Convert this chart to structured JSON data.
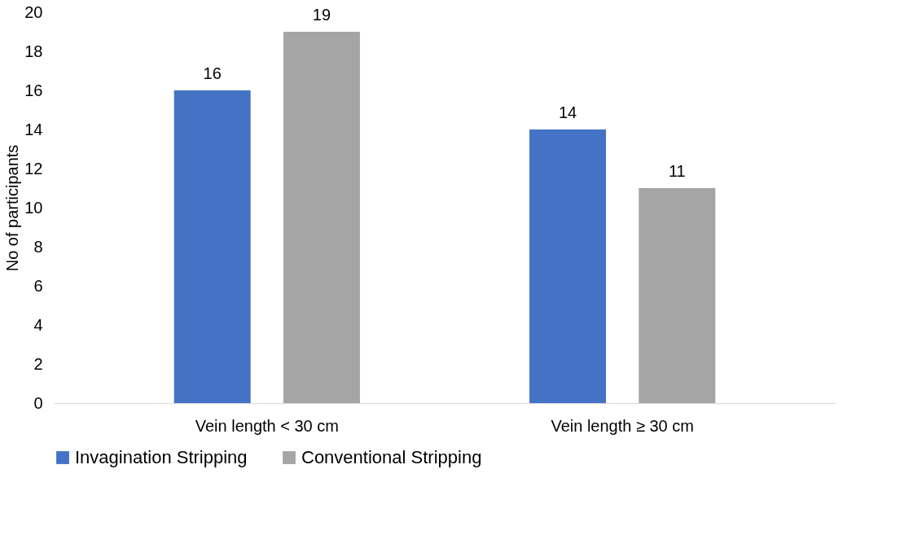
{
  "chart_data": {
    "type": "bar",
    "ylabel": "No of participants",
    "categories": [
      "Vein length < 30 cm",
      "Vein length ≥ 30 cm"
    ],
    "series": [
      {
        "name": "Invagination Stripping",
        "color": "#4472c4",
        "values": [
          16,
          14
        ]
      },
      {
        "name": "Conventional Stripping",
        "color": "#a5a5a5",
        "values": [
          19,
          11
        ]
      }
    ],
    "ylim": [
      0,
      20
    ],
    "yticks": [
      0,
      2,
      4,
      6,
      8,
      10,
      12,
      14,
      16,
      18,
      20
    ],
    "grid": false,
    "legend": "bottom",
    "data_labels": true
  }
}
